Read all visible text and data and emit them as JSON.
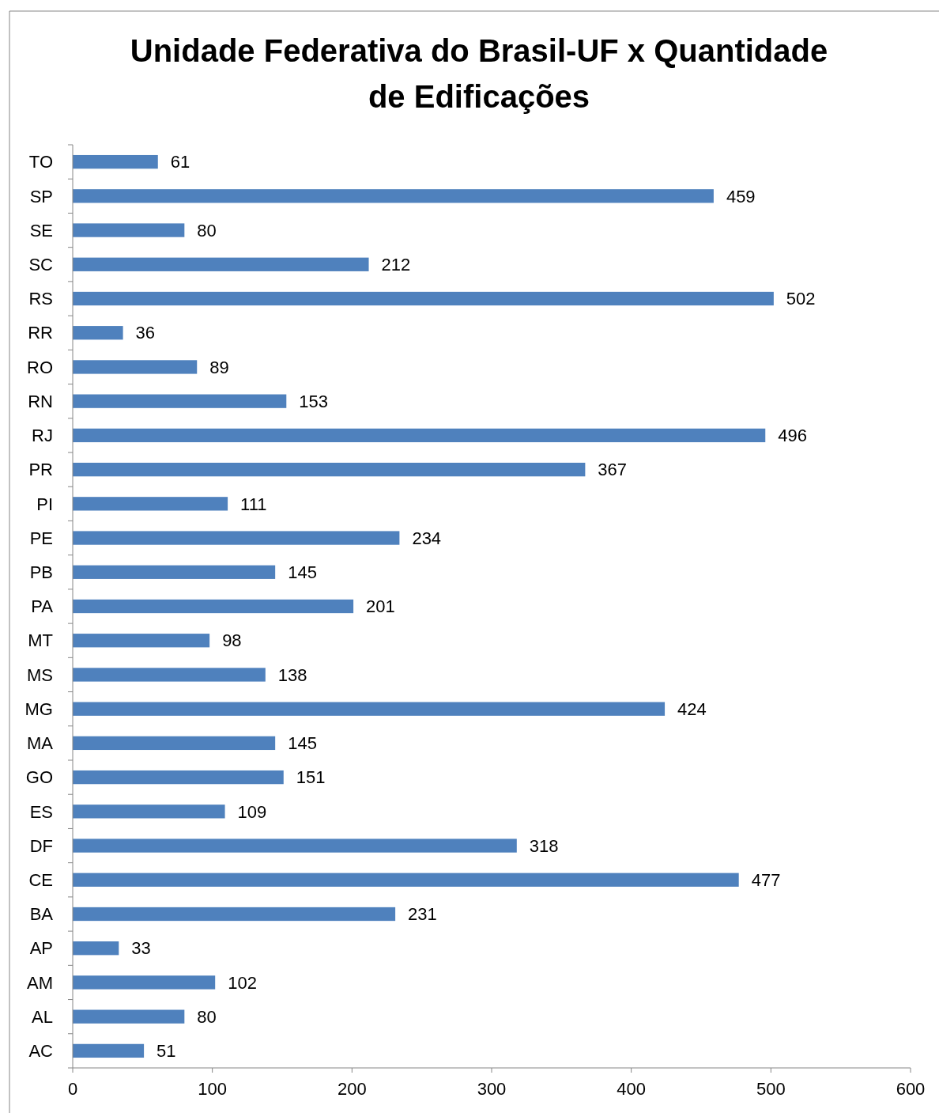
{
  "chart_data": {
    "type": "bar",
    "orientation": "horizontal",
    "title": "Unidade Federativa do Brasil-UF x Quantidade de Edificações",
    "categories": [
      "TO",
      "SP",
      "SE",
      "SC",
      "RS",
      "RR",
      "RO",
      "RN",
      "RJ",
      "PR",
      "PI",
      "PE",
      "PB",
      "PA",
      "MT",
      "MS",
      "MG",
      "MA",
      "GO",
      "ES",
      "DF",
      "CE",
      "BA",
      "AP",
      "AM",
      "AL",
      "AC"
    ],
    "values": [
      61,
      459,
      80,
      212,
      502,
      36,
      89,
      153,
      496,
      367,
      111,
      234,
      145,
      201,
      98,
      138,
      424,
      145,
      151,
      109,
      318,
      477,
      231,
      33,
      102,
      80,
      51
    ],
    "color": "#4f81bd",
    "xlim": [
      0,
      600
    ],
    "xticks": [
      0,
      100,
      200,
      300,
      400,
      500,
      600
    ],
    "data_labels": true
  }
}
